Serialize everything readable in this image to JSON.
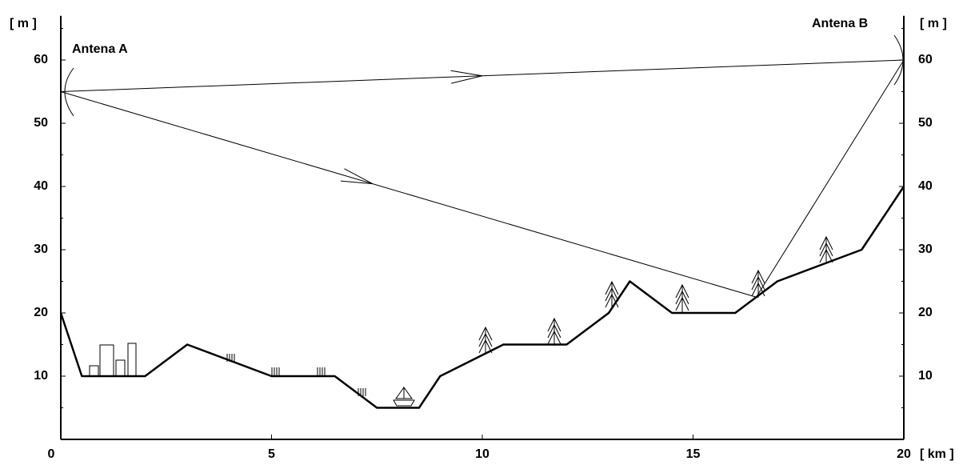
{
  "chart_data": {
    "type": "line",
    "x": [
      0,
      0.5,
      2,
      3,
      5,
      6.5,
      7.5,
      8.5,
      9,
      10.5,
      12,
      13,
      13.5,
      14.5,
      16,
      17,
      19,
      20
    ],
    "series": [
      {
        "color": "#000000",
        "width": 2.5,
        "values": [
          20,
          10,
          10,
          15,
          10,
          10,
          5,
          5,
          10,
          15,
          15,
          20,
          25,
          20,
          20,
          25,
          30,
          40
        ]
      },
      {
        "color": "#000000",
        "width": 1,
        "x": [
          0,
          20
        ],
        "values": [
          55,
          60
        ]
      },
      {
        "color": "#000000",
        "width": 1,
        "x": [
          0,
          16.5,
          20
        ],
        "values": [
          55,
          22.5,
          60
        ]
      }
    ],
    "annotations": [
      "Antena A",
      "Antena B"
    ],
    "y_label": "[ m ]",
    "y2_label": "[ m ]",
    "x_label": "[ km ]",
    "xlim": [
      0,
      20
    ],
    "xticks": [
      0,
      5,
      10,
      15,
      20
    ],
    "ylim": [
      0,
      67
    ],
    "yticks": [
      10,
      20,
      30,
      40,
      50,
      60
    ],
    "y2lim": [
      0,
      67
    ],
    "y2ticks": [
      10,
      20,
      30,
      40,
      50,
      60
    ],
    "yminor": [
      5,
      15,
      25,
      35,
      45,
      55,
      65
    ]
  }
}
